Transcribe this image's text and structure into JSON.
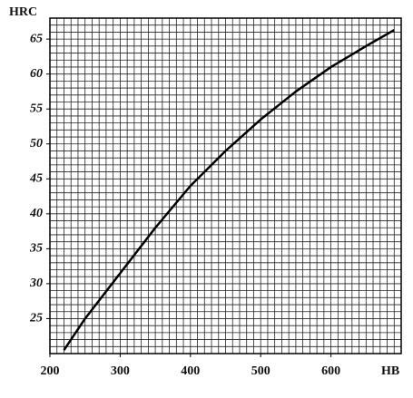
{
  "chart_data": {
    "type": "line",
    "x_label": "HB",
    "y_label": "HRC",
    "x": [
      220,
      250,
      300,
      350,
      400,
      450,
      500,
      550,
      600,
      650,
      690
    ],
    "series": [
      {
        "color": "#000000",
        "values": [
          20.5,
          25,
          31.5,
          38,
          44,
          49,
          53.5,
          57.5,
          61,
          64,
          66.3
        ]
      }
    ],
    "xlim": [
      200,
      700
    ],
    "ylim": [
      20,
      68
    ],
    "xticks": [
      200,
      300,
      400,
      500,
      600
    ],
    "yticks": [
      25,
      30,
      35,
      40,
      45,
      50,
      55,
      60,
      65
    ],
    "grid": true,
    "grid_step_x": 10,
    "grid_step_y": 1
  }
}
